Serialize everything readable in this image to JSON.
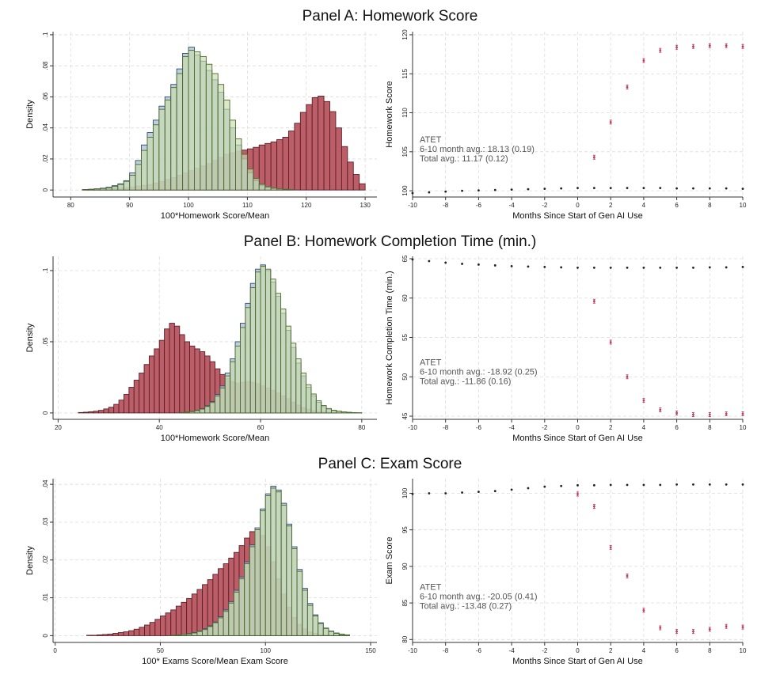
{
  "panels": {
    "a": {
      "title": "Panel A: Homework Score"
    },
    "b": {
      "title": "Panel B: Homework Completion Time (min.)"
    },
    "c": {
      "title": "Panel C: Exam Score"
    }
  },
  "colors": {
    "treated": "#b8555f",
    "treated_edge": "#5a1f28",
    "control_blue": "#a9bfd6",
    "control_blue_edge": "#2f4a72",
    "control_green": "#c7dcae",
    "control_green_edge": "#4d6a2a",
    "grid": "#dcdcdc",
    "point_treated": "#c0395a",
    "point_control": "#222222"
  },
  "chart_data": [
    {
      "id": "a-hist",
      "type": "bar",
      "xlabel": "100*Homework Score/Mean",
      "ylabel": "Density",
      "xlim": [
        77,
        132
      ],
      "ylim": [
        -0.0045,
        0.102
      ],
      "xticks": [
        80,
        90,
        100,
        110,
        120,
        130
      ],
      "yticks": [
        {
          "v": 0,
          "l": "0"
        },
        {
          "v": 0.02,
          "l": ".02"
        },
        {
          "v": 0.04,
          "l": ".04"
        },
        {
          "v": 0.06,
          "l": ".06"
        },
        {
          "v": 0.08,
          "l": ".08"
        },
        {
          "v": 0.1,
          "l": ".1"
        }
      ],
      "bin_width": 1,
      "series": [
        {
          "role": "treated",
          "start": 82,
          "end": 130,
          "values": [
            0.0003,
            0.0004,
            0.0005,
            0.0007,
            0.0009,
            0.001,
            0.0012,
            0.0015,
            0.002,
            0.0025,
            0.003,
            0.0035,
            0.0045,
            0.0055,
            0.0068,
            0.008,
            0.0095,
            0.011,
            0.0125,
            0.014,
            0.0155,
            0.017,
            0.019,
            0.021,
            0.023,
            0.024,
            0.025,
            0.0257,
            0.0265,
            0.0275,
            0.029,
            0.03,
            0.031,
            0.0325,
            0.034,
            0.038,
            0.043,
            0.05,
            0.055,
            0.0595,
            0.0605,
            0.057,
            0.0505,
            0.04,
            0.028,
            0.018,
            0.01,
            0.004
          ]
        },
        {
          "role": "control_blue",
          "start": 82,
          "end": 118,
          "values": [
            0.0003,
            0.0005,
            0.0008,
            0.0012,
            0.0018,
            0.0028,
            0.004,
            0.006,
            0.011,
            0.019,
            0.029,
            0.037,
            0.045,
            0.054,
            0.06,
            0.068,
            0.078,
            0.088,
            0.092,
            0.087,
            0.083,
            0.077,
            0.071,
            0.063,
            0.052,
            0.04,
            0.029,
            0.02,
            0.011,
            0.006,
            0.003,
            0.0017,
            0.001,
            0.0006,
            0.0004,
            0.0002
          ]
        },
        {
          "role": "control_green",
          "start": 82,
          "end": 118,
          "values": [
            0.0002,
            0.0004,
            0.0007,
            0.001,
            0.0015,
            0.0023,
            0.0036,
            0.0056,
            0.0095,
            0.0165,
            0.0255,
            0.034,
            0.042,
            0.052,
            0.058,
            0.066,
            0.075,
            0.086,
            0.09,
            0.089,
            0.086,
            0.081,
            0.075,
            0.068,
            0.058,
            0.045,
            0.033,
            0.023,
            0.0135,
            0.0075,
            0.0037,
            0.0021,
            0.0012,
            0.0007,
            0.0004,
            0.0002
          ]
        }
      ]
    },
    {
      "id": "a-event",
      "type": "scatter",
      "xlabel": "Months Since Start of Gen AI Use",
      "ylabel": "Homework Score",
      "xlim": [
        -10,
        10
      ],
      "ylim": [
        99.2,
        120.4
      ],
      "xticks": [
        -10,
        -8,
        -6,
        -4,
        -2,
        0,
        2,
        4,
        6,
        8,
        10
      ],
      "yticks": [
        {
          "v": 100,
          "l": "100"
        },
        {
          "v": 105,
          "l": "105"
        },
        {
          "v": 110,
          "l": "110"
        },
        {
          "v": 115,
          "l": "115"
        },
        {
          "v": 120,
          "l": "120"
        }
      ],
      "annotation": [
        "ATET",
        "6-10 month avg.: 18.13 (0.19)",
        "Total avg.: 11.17 (0.12)"
      ],
      "annotation_pos": {
        "x": -10,
        "y": 106.2
      },
      "series": [
        {
          "role": "control",
          "x": [
            -10,
            -9,
            -8,
            -7,
            -6,
            -5,
            -4,
            -3,
            -2,
            -1,
            0,
            1,
            2,
            3,
            4,
            5,
            6,
            7,
            8,
            9,
            10
          ],
          "y": [
            99.7,
            99.8,
            99.9,
            100.0,
            100.05,
            100.1,
            100.15,
            100.2,
            100.25,
            100.3,
            100.35,
            100.35,
            100.35,
            100.35,
            100.35,
            100.35,
            100.3,
            100.3,
            100.3,
            100.3,
            100.25
          ]
        },
        {
          "role": "treated",
          "x": [
            1,
            2,
            3,
            4,
            5,
            6,
            7,
            8,
            9,
            10
          ],
          "y": [
            104.3,
            108.8,
            113.3,
            116.7,
            118.0,
            118.4,
            118.5,
            118.6,
            118.6,
            118.5
          ]
        }
      ]
    },
    {
      "id": "b-hist",
      "type": "bar",
      "xlabel": "100*Homework Score/Mean",
      "ylabel": "Density",
      "xlim": [
        19,
        83
      ],
      "ylim": [
        -0.0045,
        0.11
      ],
      "xticks": [
        20,
        40,
        60,
        80
      ],
      "yticks": [
        {
          "v": 0,
          "l": "0"
        },
        {
          "v": 0.05,
          "l": ".05"
        },
        {
          "v": 0.1,
          "l": ".1"
        }
      ],
      "bin_width": 1,
      "series": [
        {
          "role": "treated",
          "start": 24,
          "end": 75,
          "values": [
            0.0003,
            0.0005,
            0.0008,
            0.0012,
            0.0018,
            0.0028,
            0.004,
            0.006,
            0.009,
            0.013,
            0.018,
            0.023,
            0.028,
            0.034,
            0.04,
            0.045,
            0.051,
            0.059,
            0.063,
            0.061,
            0.055,
            0.05,
            0.047,
            0.045,
            0.043,
            0.04,
            0.036,
            0.031,
            0.027,
            0.024,
            0.022,
            0.021,
            0.0215,
            0.022,
            0.0215,
            0.0205,
            0.019,
            0.0175,
            0.0158,
            0.014,
            0.012,
            0.01,
            0.0075,
            0.0055,
            0.0038,
            0.0025,
            0.0015,
            0.001,
            0.0006,
            0.0004,
            0.0002
          ]
        },
        {
          "role": "control_blue",
          "start": 44,
          "end": 80,
          "values": [
            0.0003,
            0.0006,
            0.001,
            0.0018,
            0.003,
            0.005,
            0.008,
            0.013,
            0.019,
            0.028,
            0.038,
            0.05,
            0.063,
            0.077,
            0.091,
            0.101,
            0.104,
            0.1,
            0.092,
            0.082,
            0.07,
            0.058,
            0.046,
            0.035,
            0.026,
            0.018,
            0.012,
            0.0075,
            0.0045,
            0.0027,
            0.0016,
            0.001,
            0.0006,
            0.0004,
            0.0002,
            0.0001
          ]
        },
        {
          "role": "control_green",
          "start": 44,
          "end": 80,
          "values": [
            0.0002,
            0.0005,
            0.0009,
            0.0016,
            0.0027,
            0.0045,
            0.0073,
            0.0118,
            0.0175,
            0.026,
            0.036,
            0.047,
            0.06,
            0.074,
            0.088,
            0.099,
            0.103,
            0.101,
            0.094,
            0.084,
            0.073,
            0.061,
            0.049,
            0.038,
            0.028,
            0.0198,
            0.0133,
            0.0085,
            0.0052,
            0.0031,
            0.0019,
            0.0012,
            0.0007,
            0.0004,
            0.0002,
            0.0001
          ]
        }
      ]
    },
    {
      "id": "b-event",
      "type": "scatter",
      "xlabel": "Months Since Start of Gen AI Use",
      "ylabel": "Homework Completion Time (min.)",
      "xlim": [
        -10,
        10
      ],
      "ylim": [
        44.6,
        65.3
      ],
      "xticks": [
        -10,
        -8,
        -6,
        -4,
        -2,
        0,
        2,
        4,
        6,
        8,
        10
      ],
      "yticks": [
        {
          "v": 45,
          "l": "45"
        },
        {
          "v": 50,
          "l": "50"
        },
        {
          "v": 55,
          "l": "55"
        },
        {
          "v": 60,
          "l": "60"
        },
        {
          "v": 65,
          "l": "65"
        }
      ],
      "annotation": [
        "ATET",
        "6-10 month avg.: -18.92 (0.25)",
        "Total avg.: -11.86 (0.16)"
      ],
      "annotation_pos": {
        "x": -10,
        "y": 51.5
      },
      "series": [
        {
          "role": "control",
          "x": [
            -10,
            -9,
            -8,
            -7,
            -6,
            -5,
            -4,
            -3,
            -2,
            -1,
            0,
            1,
            2,
            3,
            4,
            5,
            6,
            7,
            8,
            9,
            10
          ],
          "y": [
            64.9,
            64.7,
            64.5,
            64.35,
            64.25,
            64.15,
            64.05,
            64.0,
            63.95,
            63.9,
            63.85,
            63.85,
            63.85,
            63.85,
            63.85,
            63.85,
            63.85,
            63.85,
            63.9,
            63.9,
            63.95
          ]
        },
        {
          "role": "treated",
          "x": [
            1,
            2,
            3,
            4,
            5,
            6,
            7,
            8,
            9,
            10
          ],
          "y": [
            59.6,
            54.4,
            50.0,
            47.0,
            45.8,
            45.4,
            45.2,
            45.2,
            45.3,
            45.3
          ]
        }
      ]
    },
    {
      "id": "c-hist",
      "type": "bar",
      "xlabel": "100* Exams Score/Mean Exam Score",
      "ylabel": "Density",
      "xlim": [
        -1,
        153
      ],
      "ylim": [
        -0.0018,
        0.0415
      ],
      "xticks": [
        0,
        50,
        100,
        150
      ],
      "yticks": [
        {
          "v": 0,
          "l": "0"
        },
        {
          "v": 0.01,
          "l": ".01"
        },
        {
          "v": 0.02,
          "l": ".02"
        },
        {
          "v": 0.03,
          "l": ".03"
        },
        {
          "v": 0.04,
          "l": ".04"
        }
      ],
      "bin_width": 2.5,
      "series": [
        {
          "role": "treated",
          "start": 15,
          "end": 137.5,
          "values": [
            0.0001,
            0.0001,
            0.0002,
            0.0003,
            0.0004,
            0.0006,
            0.0008,
            0.001,
            0.0013,
            0.0017,
            0.0022,
            0.0028,
            0.0035,
            0.0043,
            0.0052,
            0.006,
            0.0068,
            0.0078,
            0.0088,
            0.0098,
            0.011,
            0.0122,
            0.0135,
            0.0148,
            0.0162,
            0.0177,
            0.019,
            0.0205,
            0.022,
            0.0238,
            0.0258,
            0.0275,
            0.028,
            0.0265,
            0.0235,
            0.0195,
            0.015,
            0.011,
            0.0075,
            0.0048,
            0.003,
            0.0018,
            0.001,
            0.0006,
            0.0003,
            0.0002,
            0.0001,
            0.0001,
            5e-05
          ]
        },
        {
          "role": "control_blue",
          "start": 55,
          "end": 140,
          "values": [
            0.0001,
            0.0002,
            0.0003,
            0.0005,
            0.0008,
            0.0012,
            0.0018,
            0.0026,
            0.0036,
            0.005,
            0.0068,
            0.009,
            0.012,
            0.0155,
            0.0195,
            0.024,
            0.0285,
            0.0335,
            0.0375,
            0.0395,
            0.0385,
            0.035,
            0.0295,
            0.0235,
            0.0175,
            0.0125,
            0.0085,
            0.0055,
            0.0034,
            0.002,
            0.0012,
            0.0007,
            0.0004,
            0.0002
          ]
        },
        {
          "role": "control_green",
          "start": 55,
          "end": 140,
          "values": [
            0.0001,
            0.0002,
            0.0003,
            0.0004,
            0.0007,
            0.0011,
            0.0016,
            0.0024,
            0.0034,
            0.0047,
            0.0064,
            0.0086,
            0.0115,
            0.015,
            0.019,
            0.0235,
            0.028,
            0.033,
            0.037,
            0.039,
            0.038,
            0.0345,
            0.029,
            0.023,
            0.017,
            0.012,
            0.008,
            0.0052,
            0.0032,
            0.0019,
            0.0011,
            0.0006,
            0.0003,
            0.0002
          ]
        }
      ]
    },
    {
      "id": "c-event",
      "type": "scatter",
      "xlabel": "Months Since Start of Gen AI Use",
      "ylabel": "Exam Score",
      "xlim": [
        -10,
        10
      ],
      "ylim": [
        79.6,
        102.0
      ],
      "xticks": [
        -10,
        -8,
        -6,
        -4,
        -2,
        0,
        2,
        4,
        6,
        8,
        10
      ],
      "yticks": [
        {
          "v": 80,
          "l": "80"
        },
        {
          "v": 85,
          "l": "85"
        },
        {
          "v": 90,
          "l": "90"
        },
        {
          "v": 95,
          "l": "95"
        },
        {
          "v": 100,
          "l": "100"
        }
      ],
      "annotation": [
        "ATET",
        "6-10 month avg.: -20.05 (0.41)",
        "Total avg.: -13.48 (0.27)"
      ],
      "annotation_pos": {
        "x": -10,
        "y": 86.8
      },
      "series": [
        {
          "role": "control",
          "x": [
            -10,
            -9,
            -8,
            -7,
            -6,
            -5,
            -4,
            -3,
            -2,
            -1,
            0,
            1,
            2,
            3,
            4,
            5,
            6,
            7,
            8,
            9,
            10
          ],
          "y": [
            99.9,
            100.0,
            100.0,
            100.1,
            100.2,
            100.3,
            100.5,
            100.7,
            100.9,
            101.0,
            101.1,
            101.1,
            101.15,
            101.15,
            101.15,
            101.15,
            101.2,
            101.2,
            101.2,
            101.2,
            101.2
          ]
        },
        {
          "role": "treated",
          "x": [
            0,
            1,
            2,
            3,
            4,
            5,
            6,
            7,
            8,
            9,
            10
          ],
          "y": [
            99.9,
            98.2,
            92.6,
            88.7,
            84.0,
            81.6,
            81.1,
            81.1,
            81.4,
            81.8,
            81.7
          ]
        }
      ]
    }
  ]
}
